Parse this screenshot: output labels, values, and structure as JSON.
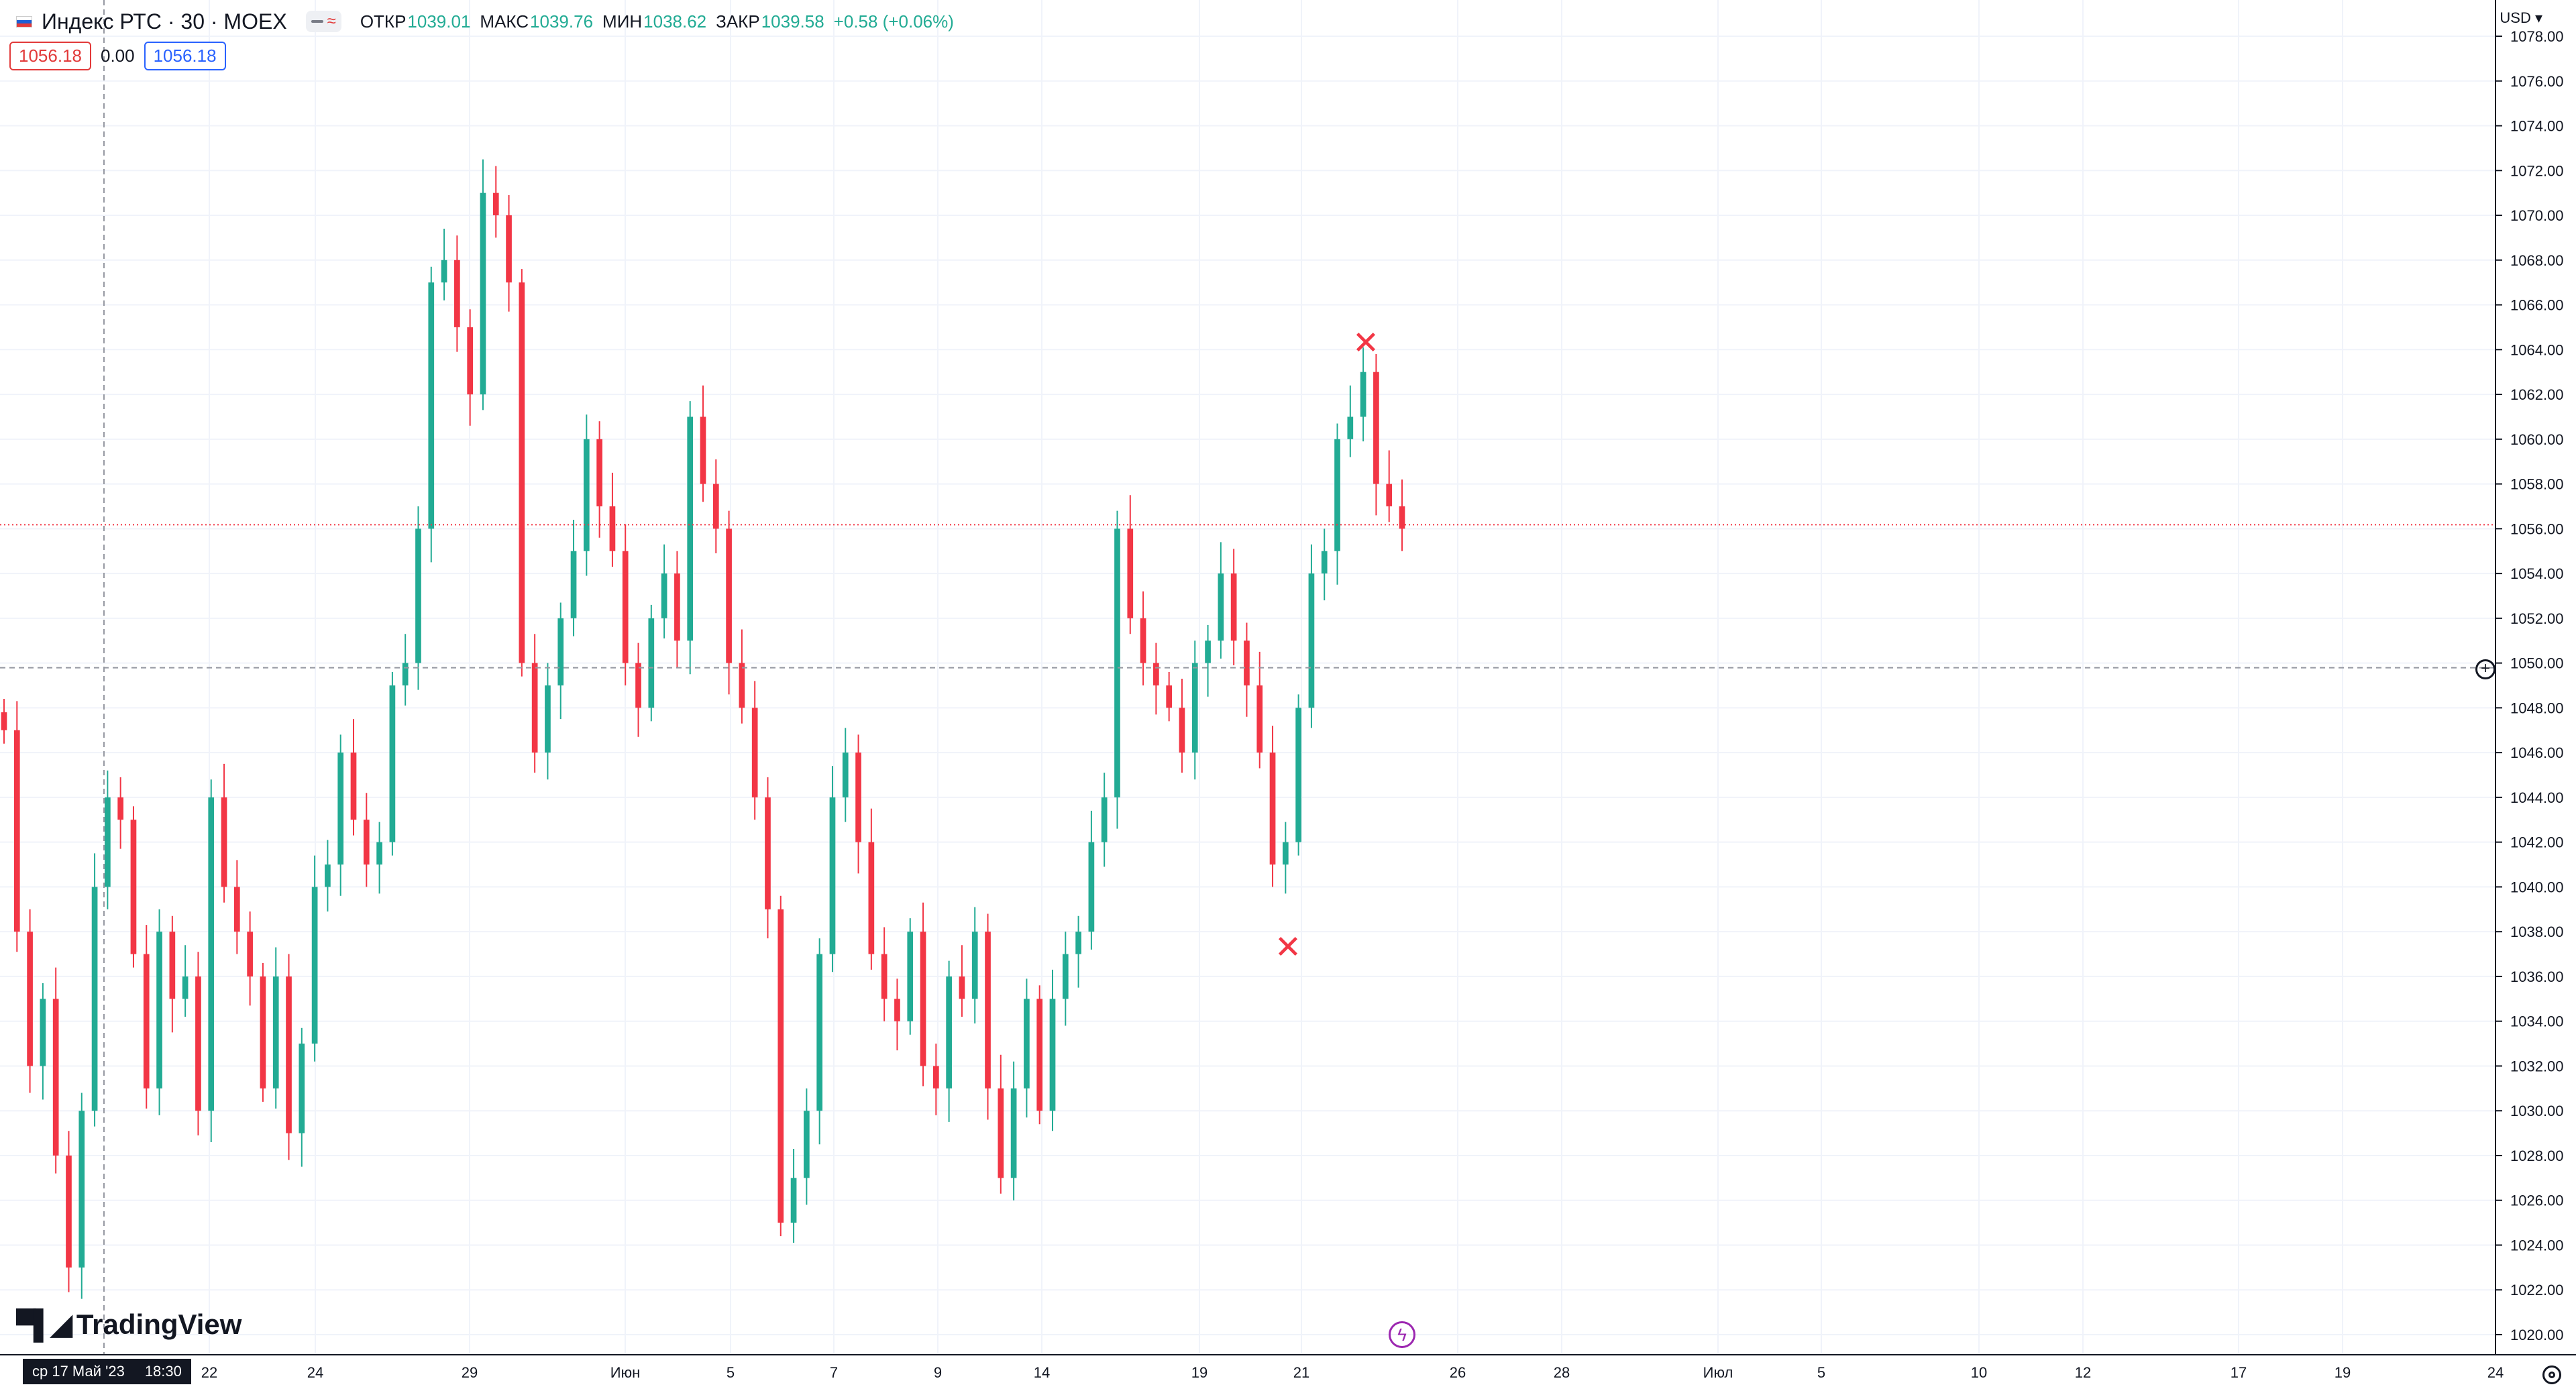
{
  "header": {
    "symbol": "Индекс РТС · 30 · MOEX",
    "open_label": "ОТКР",
    "open": "1039.01",
    "high_label": "МАКС",
    "high": "1039.76",
    "low_label": "МИН",
    "low": "1038.62",
    "close_label": "ЗАКР",
    "close": "1039.58",
    "change": "+0.58 (+0.06%)"
  },
  "order": {
    "sell": "1056.18",
    "spread": "0.00",
    "buy": "1056.18"
  },
  "currency": "USD",
  "brand": "TradingView",
  "crosshair": {
    "date": "ср 17 Май '23",
    "time": "18:30",
    "price": "1049.79"
  },
  "colors": {
    "up": "#22ab94",
    "down": "#f23645",
    "accent": "#2962ff"
  },
  "chart_data": {
    "type": "candlestick",
    "last_price": 1056.18,
    "ylim": [
      1020,
      1078
    ],
    "y_ticks": [
      "1078.00",
      "1076.00",
      "1074.00",
      "1072.00",
      "1070.00",
      "1068.00",
      "1066.00",
      "1064.00",
      "1062.00",
      "1060.00",
      "1058.00",
      "1056.00",
      "1054.00",
      "1052.00",
      "1050.00",
      "1048.00",
      "1046.00",
      "1044.00",
      "1042.00",
      "1040.00",
      "1038.00",
      "1036.00",
      "1034.00",
      "1032.00",
      "1030.00",
      "1028.00",
      "1026.00",
      "1024.00",
      "1022.00",
      "1020.00"
    ],
    "x_ticks": [
      "22",
      "24",
      "29",
      "Июн",
      "5",
      "7",
      "9",
      "14",
      "19",
      "21",
      "26",
      "28",
      "Июл",
      "5",
      "10",
      "12",
      "17",
      "19",
      "24"
    ],
    "series": [
      {
        "values": [
          1047,
          1038,
          1032,
          1035,
          1028,
          1023,
          1030,
          1040,
          1044,
          1043,
          1037,
          1031,
          1038,
          1035,
          1036,
          1030,
          1044,
          1040,
          1038,
          1036,
          1031,
          1036,
          1029,
          1033,
          1040,
          1041,
          1046,
          1043,
          1041,
          1042,
          1049,
          1050,
          1056,
          1067,
          1068,
          1065,
          1062,
          1071,
          1070,
          1067,
          1050,
          1046,
          1049,
          1052,
          1055,
          1060,
          1057,
          1055,
          1050,
          1048,
          1052,
          1054,
          1051,
          1061,
          1058,
          1056,
          1050,
          1048,
          1044,
          1039,
          1025,
          1027,
          1030,
          1037,
          1044,
          1046,
          1042,
          1037,
          1035,
          1034,
          1038,
          1032,
          1031,
          1036,
          1035,
          1038,
          1031,
          1027,
          1031,
          1035,
          1030,
          1035,
          1037,
          1038,
          1042,
          1044,
          1056,
          1052,
          1050,
          1049,
          1048,
          1046,
          1050,
          1051,
          1054,
          1051,
          1049,
          1046,
          1041,
          1042,
          1048,
          1054,
          1055,
          1060,
          1061,
          1063,
          1058,
          1057,
          1056
        ]
      }
    ],
    "markers": [
      {
        "label": "✕",
        "price": 1064.3
      },
      {
        "label": "✕",
        "price": 1037.3
      }
    ]
  }
}
